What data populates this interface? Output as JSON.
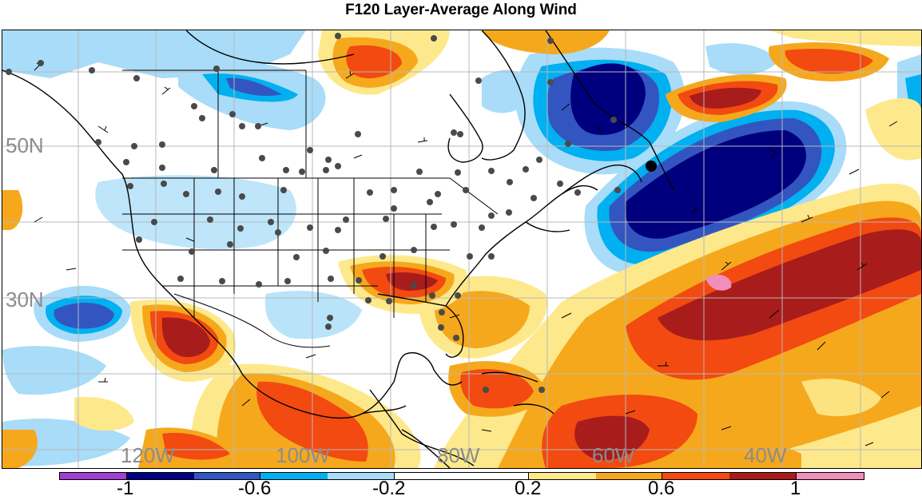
{
  "title": "F120 Layer-Average Along Wind",
  "map": {
    "region": "North America / North Atlantic",
    "lat_labels": [
      "50N",
      "30N"
    ],
    "lon_labels": [
      "120W",
      "100W",
      "80W",
      "60W",
      "40W"
    ],
    "gridlines": true
  },
  "colorbar": {
    "colors": [
      "#a040d0",
      "#00007f",
      "#3355c0",
      "#00b0f0",
      "#a8dcf8",
      "#ffffff",
      "#ffffff",
      "#fde98c",
      "#f6a81c",
      "#f24a10",
      "#a81c1c",
      "#f090b8"
    ],
    "labels": [
      "-1",
      "-0.6",
      "-0.2",
      "0.2",
      "0.6",
      "1"
    ]
  }
}
